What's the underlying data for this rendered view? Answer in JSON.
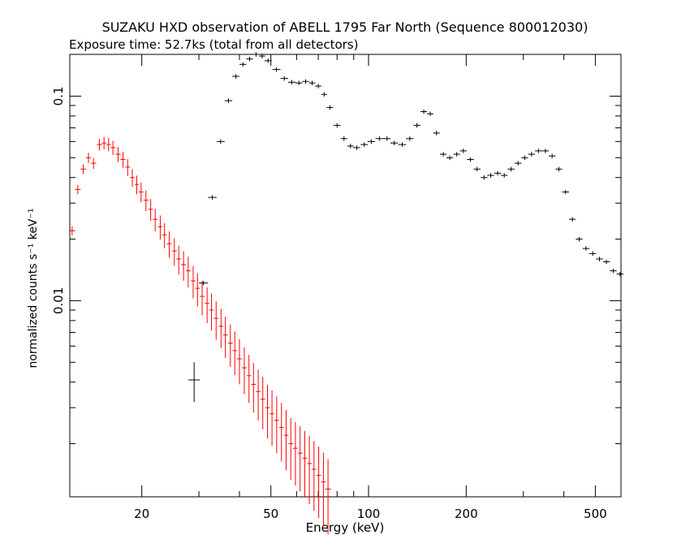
{
  "chart_data": {
    "type": "scatter",
    "title": "SUZAKU HXD observation of ABELL 1795 Far North (Sequence 800012030)",
    "subtitle": "Exposure time: 52.7ks (total from all detectors)",
    "xlabel": "Energy (keV)",
    "ylabel": "normalized counts s⁻¹ keV⁻¹",
    "x_scale": "log",
    "y_scale": "log",
    "xlim": [
      12,
      600
    ],
    "ylim": [
      0.0011,
      0.16
    ],
    "x_tick_labels": [
      "20",
      "50",
      "100",
      "200",
      "500"
    ],
    "y_tick_labels": [
      "0.1",
      "0.01"
    ],
    "grid": false,
    "series": [
      {
        "color": "#ff0000",
        "x": [
          12.2,
          12.7,
          13.2,
          13.7,
          14.2,
          14.8,
          15.3,
          15.8,
          16.3,
          16.9,
          17.5,
          18.1,
          18.7,
          19.3,
          19.9,
          20.6,
          21.3,
          22.0,
          22.8,
          23.5,
          24.3,
          25.2,
          26.0,
          26.9,
          27.8,
          28.8,
          29.7,
          30.7,
          31.8,
          32.8,
          33.9,
          35.1,
          36.2,
          37.5,
          38.7,
          40.0,
          41.4,
          42.8,
          44.2,
          45.7,
          47.2,
          48.8,
          50.4,
          52.1,
          53.9,
          55.7,
          57.6,
          59.5,
          61.5,
          63.6,
          65.7,
          67.9,
          70.2,
          72.6,
          75.0
        ],
        "y": [
          0.022,
          0.035,
          0.044,
          0.05,
          0.047,
          0.058,
          0.059,
          0.058,
          0.056,
          0.052,
          0.049,
          0.045,
          0.04,
          0.037,
          0.034,
          0.031,
          0.028,
          0.025,
          0.023,
          0.021,
          0.019,
          0.0175,
          0.016,
          0.015,
          0.014,
          0.0125,
          0.0115,
          0.0105,
          0.0097,
          0.009,
          0.0082,
          0.0075,
          0.0068,
          0.0062,
          0.0057,
          0.0052,
          0.0047,
          0.0043,
          0.0039,
          0.0036,
          0.0033,
          0.003,
          0.0028,
          0.0026,
          0.0024,
          0.0022,
          0.002,
          0.0019,
          0.0018,
          0.0017,
          0.0016,
          0.0015,
          0.0014,
          0.0013,
          0.0012
        ]
      },
      {
        "color": "#000000",
        "x": [
          29,
          31,
          33,
          35,
          37,
          39,
          41,
          43,
          45,
          47,
          49,
          52,
          55,
          58,
          61,
          64,
          67,
          70,
          73,
          76,
          80,
          84,
          88,
          92,
          97,
          102,
          108,
          114,
          120,
          127,
          134,
          141,
          148,
          155,
          162,
          170,
          178,
          187,
          196,
          206,
          216,
          227,
          238,
          250,
          262,
          275,
          289,
          303,
          318,
          334,
          351,
          368,
          386,
          405,
          425,
          446,
          468,
          491,
          515,
          541,
          568,
          596
        ],
        "y": [
          0.0041,
          0.0122,
          0.032,
          0.06,
          0.095,
          0.125,
          0.143,
          0.152,
          0.16,
          0.157,
          0.149,
          0.135,
          0.122,
          0.117,
          0.116,
          0.118,
          0.116,
          0.112,
          0.102,
          0.088,
          0.072,
          0.062,
          0.057,
          0.056,
          0.058,
          0.06,
          0.062,
          0.062,
          0.059,
          0.058,
          0.062,
          0.072,
          0.084,
          0.082,
          0.066,
          0.052,
          0.05,
          0.052,
          0.054,
          0.049,
          0.044,
          0.04,
          0.041,
          0.042,
          0.041,
          0.044,
          0.047,
          0.05,
          0.052,
          0.054,
          0.054,
          0.051,
          0.044,
          0.034,
          0.025,
          0.02,
          0.018,
          0.017,
          0.016,
          0.0155,
          0.014,
          0.0135
        ]
      }
    ]
  }
}
